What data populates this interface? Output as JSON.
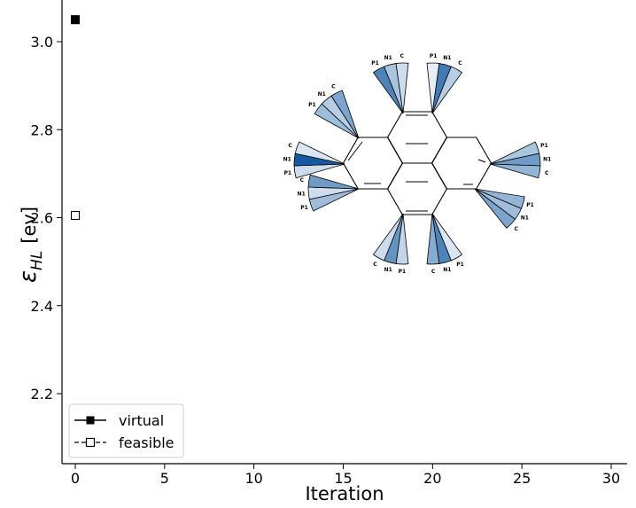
{
  "chart_data": {
    "type": "scatter",
    "title": "",
    "xlabel": "Iteration",
    "ylabel_main": "ε",
    "ylabel_sub": "HL",
    "ylabel_unit": "[ev]",
    "xlim": [
      -0.7,
      30.7
    ],
    "ylim": [
      2.045,
      3.09
    ],
    "xticks": [
      0,
      5,
      10,
      15,
      20,
      25,
      30
    ],
    "yticks": [
      2.2,
      2.4,
      2.6,
      2.8,
      3.0
    ],
    "grid": false,
    "legend_position": "lower-left",
    "series": [
      {
        "name": "virtual",
        "marker": "filled-square",
        "line": "solid",
        "color": "#000000",
        "x": [
          0
        ],
        "y": [
          3.05
        ]
      },
      {
        "name": "feasible",
        "marker": "open-square",
        "line": "dashed",
        "color": "#000000",
        "x": [
          0
        ],
        "y": [
          2.605
        ]
      }
    ],
    "inset": {
      "description_labels": [
        "C",
        "N1",
        "P1"
      ],
      "fan_sites": [
        {
          "labels": [
            "P1",
            "N1",
            "C"
          ],
          "weights": [
            0.7,
            0.3,
            0.15
          ]
        },
        {
          "labels": [
            "P1",
            "N1",
            "C"
          ],
          "weights": [
            0.05,
            0.75,
            0.25
          ]
        },
        {
          "labels": [
            "P1",
            "N1",
            "C"
          ],
          "weights": [
            0.35,
            0.25,
            0.5
          ]
        },
        {
          "labels": [
            "P1",
            "N1",
            "C"
          ],
          "weights": [
            0.15,
            0.95,
            0.1
          ]
        },
        {
          "labels": [
            "P1",
            "N1",
            "C"
          ],
          "weights": [
            0.35,
            0.15,
            0.55
          ]
        },
        {
          "labels": [
            "P1",
            "N1",
            "C"
          ],
          "weights": [
            0.2,
            0.6,
            0.15
          ]
        },
        {
          "labels": [
            "P1",
            "N1",
            "C"
          ],
          "weights": [
            0.1,
            0.7,
            0.45
          ]
        },
        {
          "labels": [
            "P1",
            "N1",
            "C"
          ],
          "weights": [
            0.4,
            0.35,
            0.5
          ]
        },
        {
          "labels": [
            "P1",
            "N1",
            "C"
          ],
          "weights": [
            0.3,
            0.55,
            0.4
          ]
        },
        {
          "labels": [
            "P1",
            "N1",
            "C"
          ],
          "weights": [
            0.05,
            0.6,
            0.4
          ]
        }
      ]
    }
  }
}
